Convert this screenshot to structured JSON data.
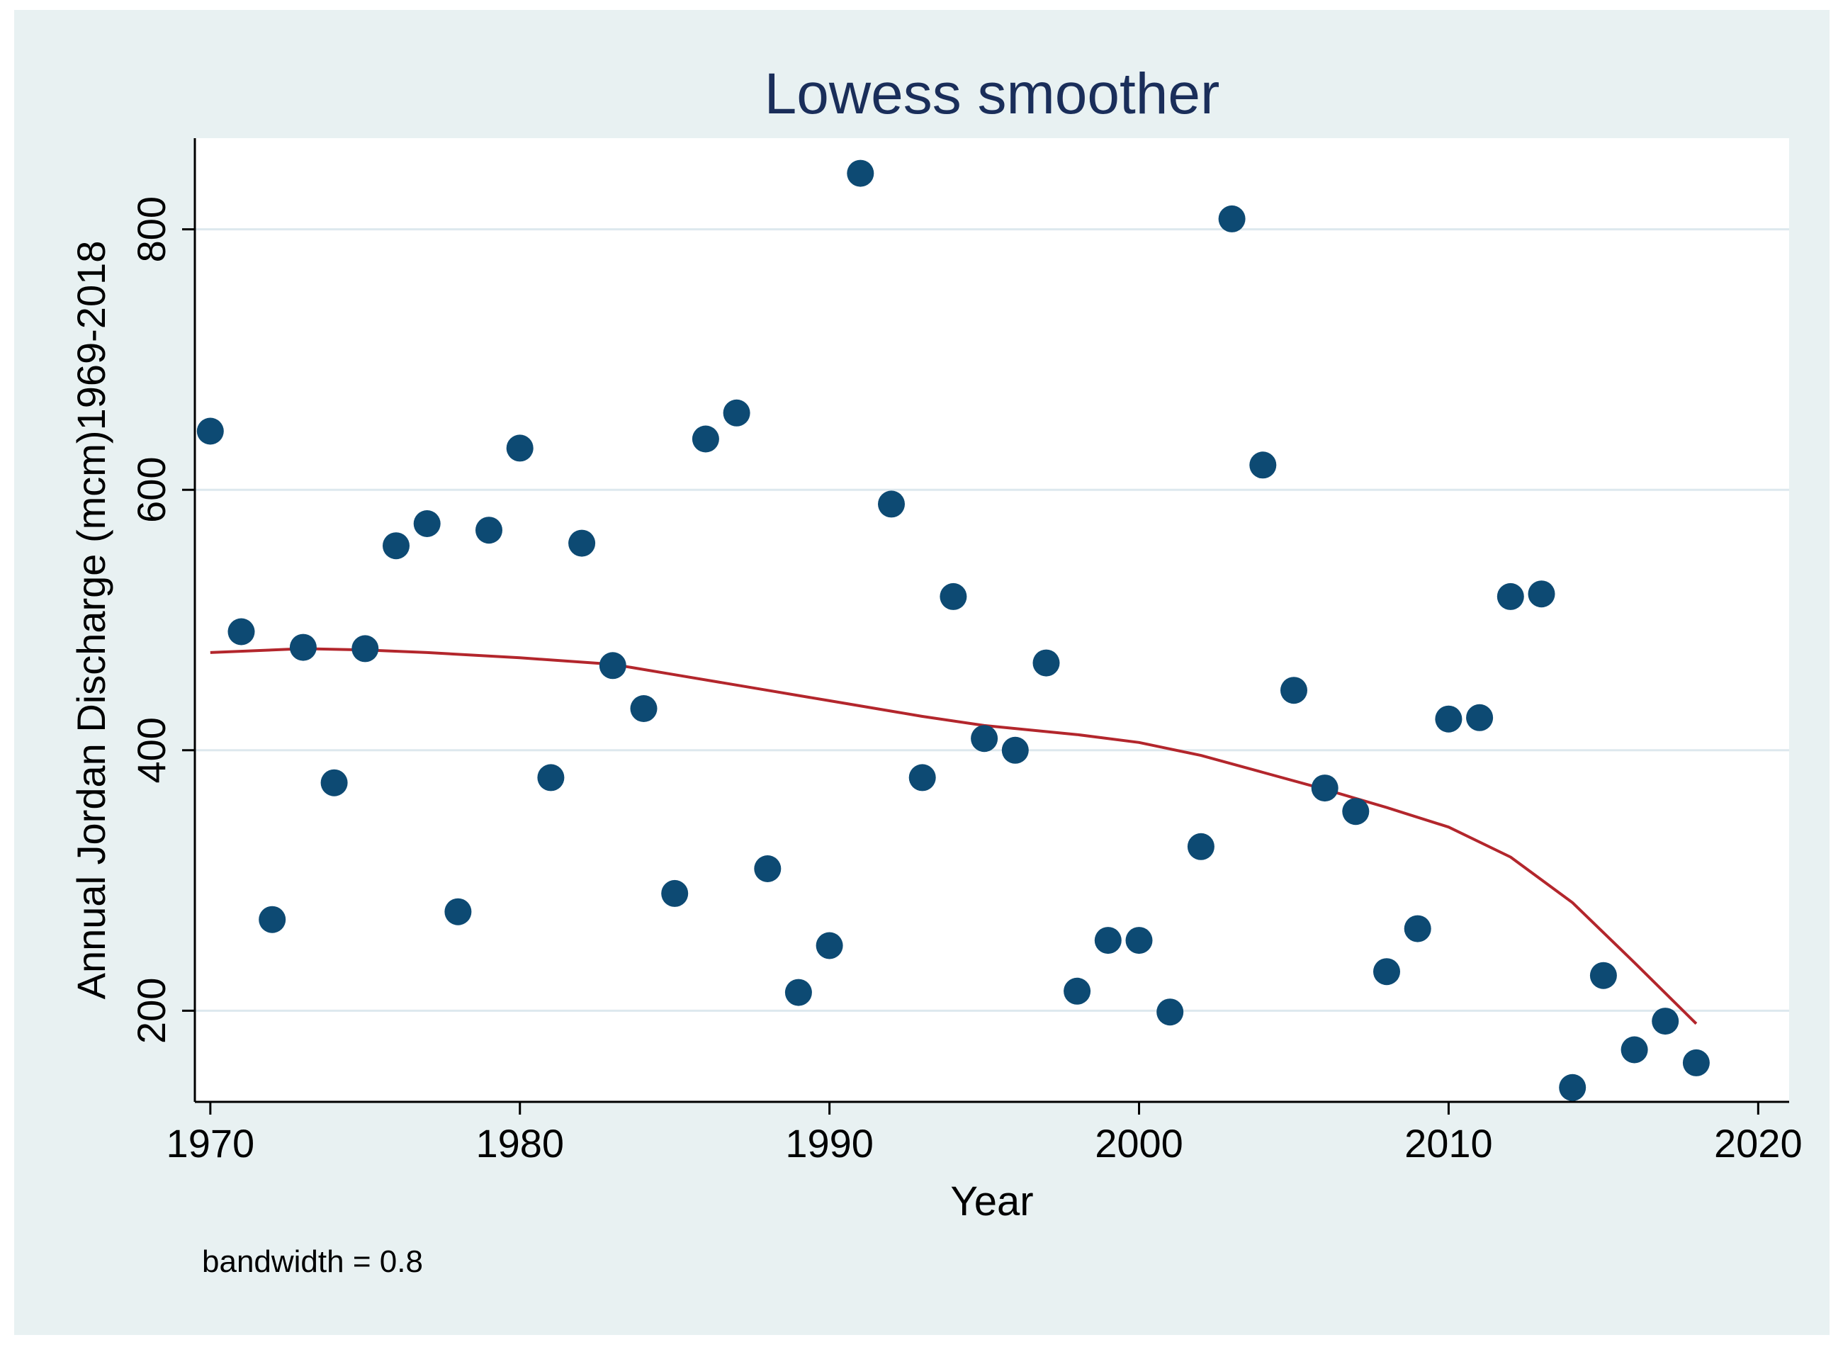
{
  "chart_data": {
    "type": "scatter",
    "title": "Lowess smoother",
    "xlabel": "Year",
    "ylabel": "Annual Jordan Discharge (mcm)1969-2018",
    "note": "bandwidth = 0.8",
    "xlim": [
      1969.5,
      2021
    ],
    "ylim": [
      130,
      870
    ],
    "xticks": [
      1970,
      1980,
      1990,
      2000,
      2010,
      2020
    ],
    "yticks": [
      200,
      400,
      600,
      800
    ],
    "grid": true,
    "legend": "none",
    "colors": {
      "outer_background": "#e8f1f2",
      "plot_background": "#ffffff",
      "grid": "#dde8ee",
      "marker": "#0d4a73",
      "smoother": "#b3262c",
      "text": "#000000",
      "title": "#1a2e5a"
    },
    "series": [
      {
        "type": "scatter",
        "x": [
          1970,
          1971,
          1972,
          1973,
          1974,
          1975,
          1976,
          1977,
          1978,
          1979,
          1980,
          1981,
          1982,
          1983,
          1984,
          1985,
          1986,
          1987,
          1988,
          1989,
          1990,
          1991,
          1992,
          1993,
          1994,
          1995,
          1996,
          1997,
          1998,
          1999,
          2000,
          2001,
          2002,
          2003,
          2004,
          2005,
          2006,
          2007,
          2008,
          2009,
          2010,
          2011,
          2012,
          2013,
          2014,
          2015,
          2016,
          2017,
          2018
        ],
        "y": [
          645,
          491,
          270,
          479,
          375,
          478,
          557,
          574,
          276,
          569,
          632,
          379,
          559,
          465,
          432,
          290,
          639,
          659,
          309,
          214,
          250,
          843,
          589,
          379,
          518,
          409,
          400,
          467,
          215,
          254,
          254,
          199,
          326,
          808,
          619,
          446,
          371,
          353,
          230,
          263,
          424,
          425,
          518,
          520,
          141,
          227,
          170,
          192,
          160
        ]
      },
      {
        "type": "line",
        "x": [
          1970,
          1973,
          1975,
          1977,
          1980,
          1983,
          1985,
          1988,
          1990,
          1993,
          1995,
          1998,
          2000,
          2002,
          2004,
          2006,
          2008,
          2010,
          2012,
          2014,
          2016,
          2018
        ],
        "y": [
          475,
          478,
          477,
          475,
          471,
          466,
          458,
          446,
          438,
          426,
          419,
          412,
          406,
          396,
          383,
          370,
          356,
          341,
          318,
          283,
          237,
          190
        ]
      }
    ]
  }
}
